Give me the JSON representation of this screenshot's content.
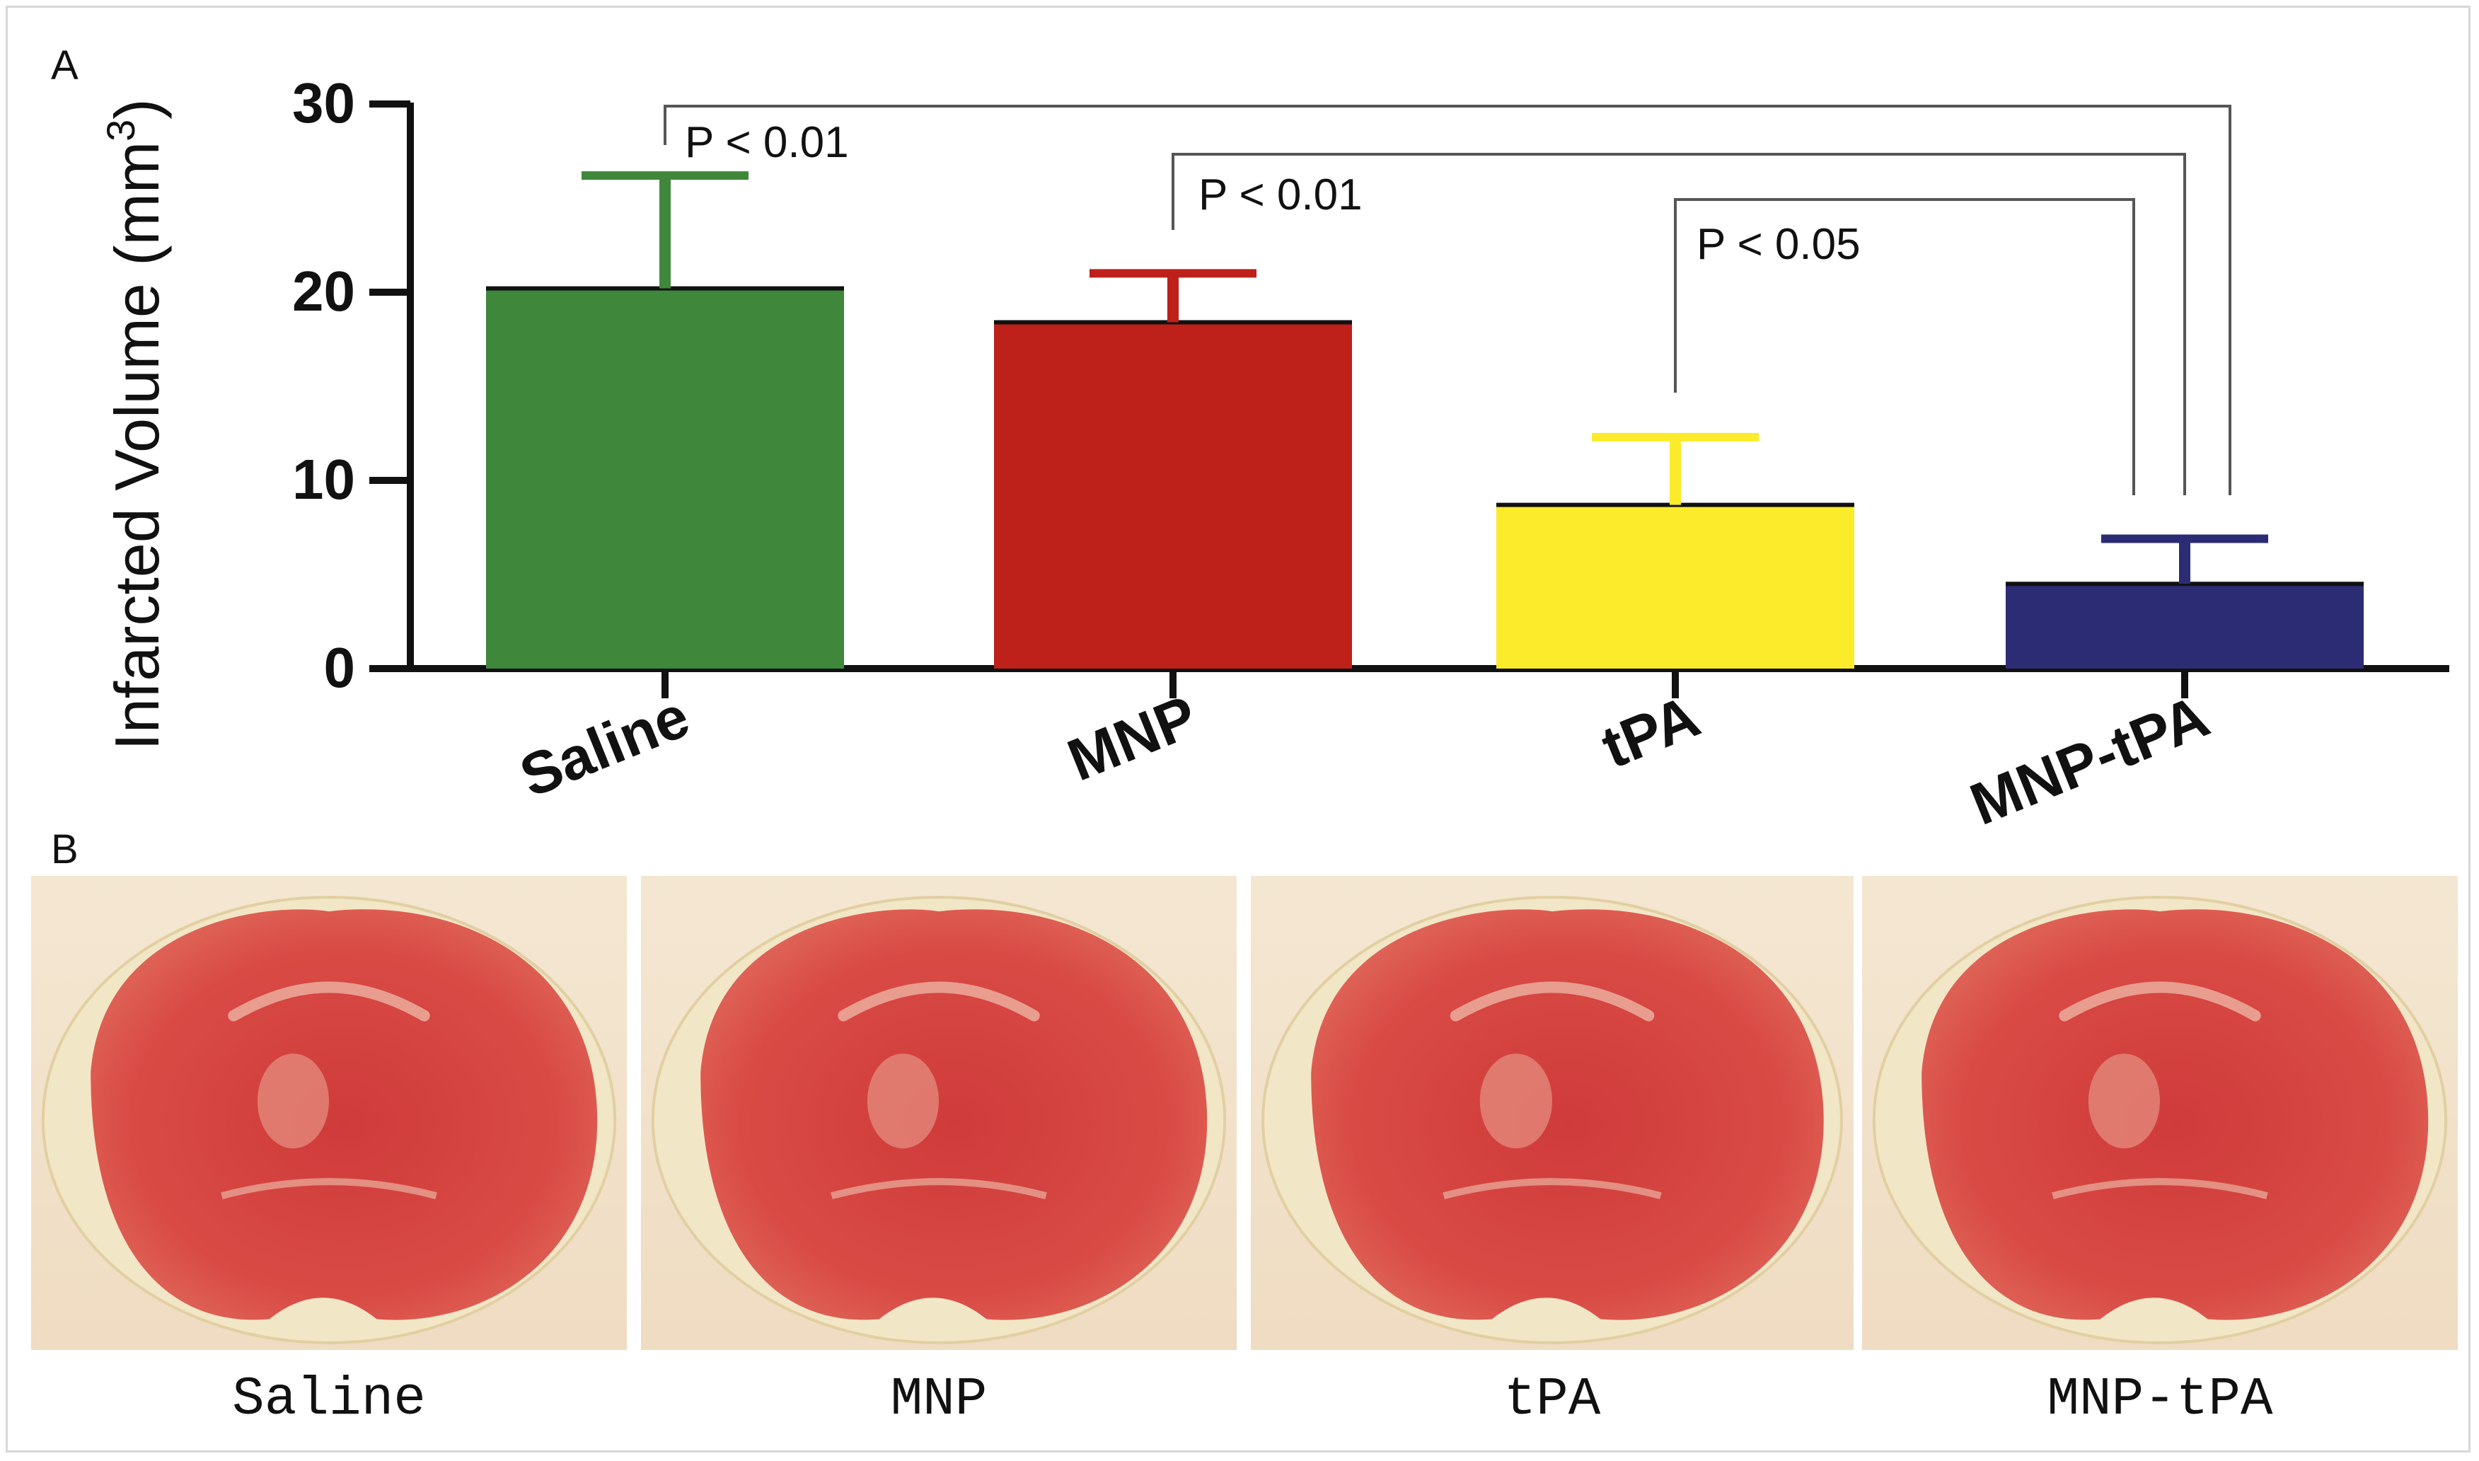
{
  "panel_a_label": "A",
  "panel_b_label": "B",
  "chart_data": {
    "type": "bar",
    "categories": [
      "Saline",
      "MNP",
      "tPA",
      "MNP-tPA"
    ],
    "values": [
      20.2,
      18.4,
      8.7,
      4.5
    ],
    "errors": [
      6.0,
      2.6,
      3.6,
      2.4
    ],
    "colors": [
      "#3f873b",
      "#bd2119",
      "#fbeb2a",
      "#2c2c74"
    ],
    "ylabel": "Infarcted Volume (mm",
    "ylabel_sup": "3",
    "ylabel_close": ")",
    "ylim": [
      0,
      30
    ],
    "yticks": [
      "0",
      "10",
      "20",
      "30"
    ],
    "significance": [
      {
        "from": "Saline",
        "to": "MNP-tPA",
        "label": "P < 0.01"
      },
      {
        "from": "MNP",
        "to": "MNP-tPA",
        "label": "P < 0.01"
      },
      {
        "from": "tPA",
        "to": "MNP-tPA",
        "label": "P < 0.05"
      }
    ]
  },
  "photos": [
    {
      "caption": "Saline"
    },
    {
      "caption": "MNP"
    },
    {
      "caption": "tPA"
    },
    {
      "caption": "MNP-tPA"
    }
  ]
}
